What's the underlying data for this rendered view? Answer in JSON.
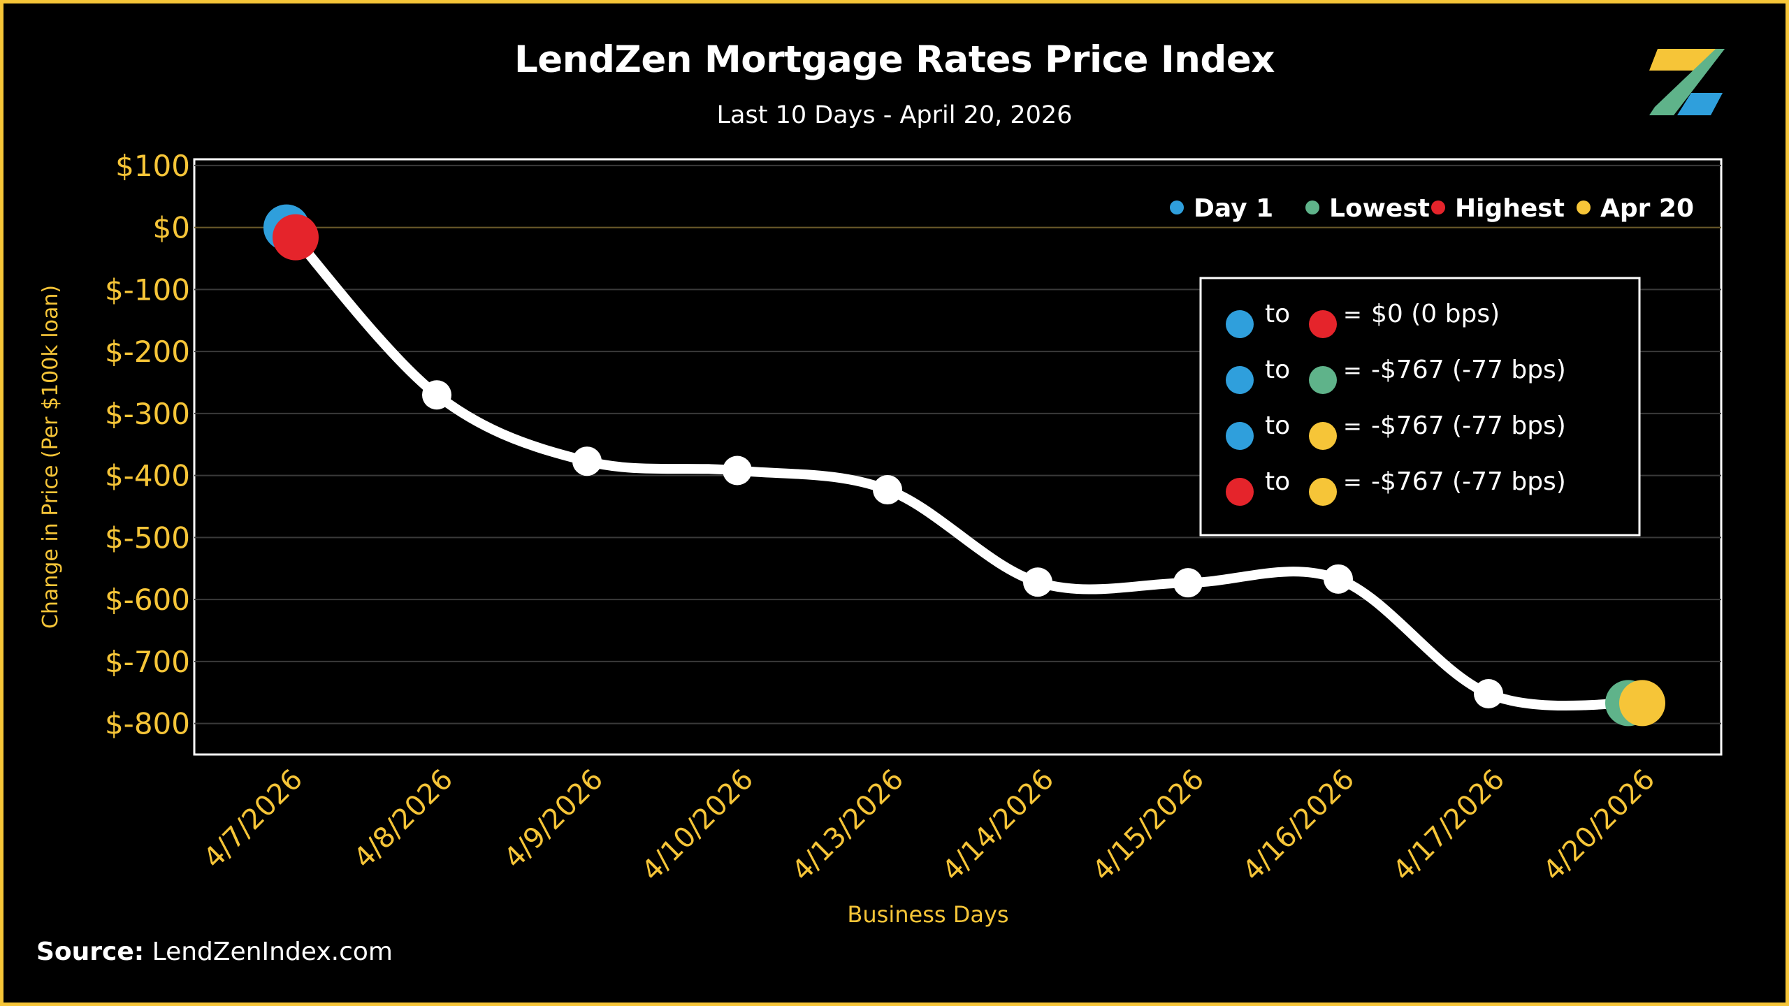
{
  "header": {
    "title": "LendZen Mortgage Rates Price Index",
    "subtitle": "Last 10 Days - April 20, 2026"
  },
  "footer": {
    "source_label": "Source:",
    "source_value": "LendZenIndex.com"
  },
  "logo": {
    "icon": "lendzen-z-logo-icon",
    "colors": [
      "#f6c538",
      "#5fb38a",
      "#2f9fdc"
    ]
  },
  "colors": {
    "background": "#000000",
    "frame": "#f6c538",
    "axis_text": "#f6c538",
    "line": "#ffffff",
    "day1": "#2f9fdc",
    "lowest": "#5fb38a",
    "highest": "#e5242b",
    "latest": "#f6c538"
  },
  "legend": {
    "items": [
      {
        "label": "Day 1",
        "color": "#2f9fdc"
      },
      {
        "label": "Lowest",
        "color": "#5fb38a"
      },
      {
        "label": "Highest",
        "color": "#e5242b"
      },
      {
        "label": "Apr 20",
        "color": "#f6c538"
      }
    ]
  },
  "summary": {
    "connector": "to",
    "equals": "=",
    "rows": [
      {
        "from": "#2f9fdc",
        "to": "#e5242b",
        "value": "$0 (0 bps)"
      },
      {
        "from": "#2f9fdc",
        "to": "#5fb38a",
        "value": "-$767 (-77 bps)"
      },
      {
        "from": "#2f9fdc",
        "to": "#f6c538",
        "value": "-$767 (-77 bps)"
      },
      {
        "from": "#e5242b",
        "to": "#f6c538",
        "value": "-$767 (-77 bps)"
      }
    ]
  },
  "chart_data": {
    "type": "line",
    "title": "LendZen Mortgage Rates Price Index",
    "subtitle": "Last 10 Days - April 20, 2026",
    "xlabel": "Business Days",
    "ylabel": "Change in Price (Per $100k loan)",
    "categories": [
      "4/7/2026",
      "4/8/2026",
      "4/9/2026",
      "4/10/2026",
      "4/13/2026",
      "4/14/2026",
      "4/15/2026",
      "4/16/2026",
      "4/17/2026",
      "4/20/2026"
    ],
    "series": [
      {
        "values": [
          0,
          -270,
          -377,
          -392,
          -423,
          -572,
          -573,
          -567,
          -752,
          -767
        ]
      }
    ],
    "ylim": [
      -850,
      110
    ],
    "yticks": [
      100,
      0,
      -100,
      -200,
      -300,
      -400,
      -500,
      -600,
      -700,
      -800
    ],
    "ytick_labels": [
      "$100",
      "$0",
      "$-100",
      "$-200",
      "$-300",
      "$-400",
      "$-500",
      "$-600",
      "$-700",
      "$-800"
    ],
    "grid": true,
    "legend_position": "top-right",
    "highlights": {
      "day1": 0,
      "highest": 0,
      "lowest": 9,
      "latest": 9
    }
  }
}
